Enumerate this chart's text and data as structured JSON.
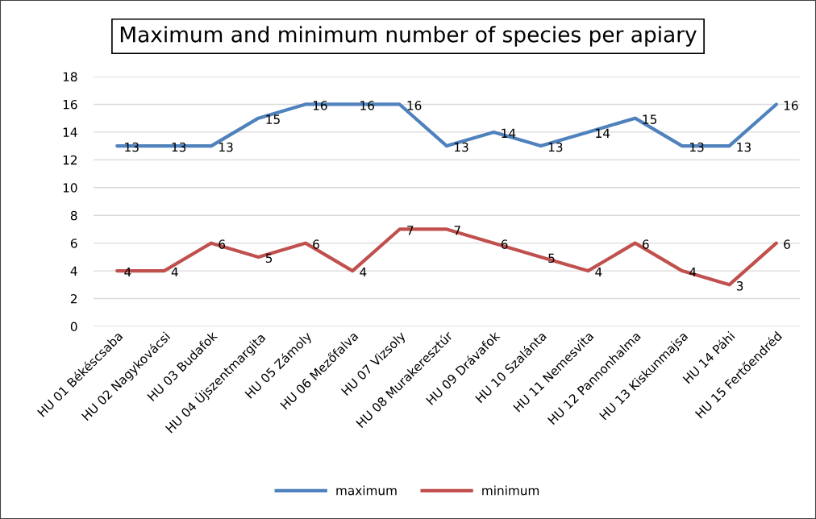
{
  "chart_data": {
    "type": "line",
    "title": "Maximum and minimum number of species per apiary",
    "categories": [
      "HU 01 Békéscsaba",
      "HU 02 Nagykovácsi",
      "HU 03 Budafok",
      "HU 04 Újszentmargita",
      "HU 05 Zámoly",
      "HU 06 Mezőfalva",
      "HU 07 Vizsoly",
      "HU 08 Murakeresztúr",
      "HU 09 Drávafok",
      "HU 10 Szalánta",
      "HU 11 Nemesvita",
      "HU 12 Pannonhalma",
      "HU 13 Kiskunmajsa",
      "HU 14 Páhi",
      "HU 15 Fertőendréd"
    ],
    "series": [
      {
        "name": "maximum",
        "color": "#4f81bd",
        "values": [
          13,
          13,
          13,
          15,
          16,
          16,
          16,
          13,
          14,
          13,
          14,
          15,
          13,
          13,
          16
        ]
      },
      {
        "name": "minimum",
        "color": "#c0504d",
        "values": [
          4,
          4,
          6,
          5,
          6,
          4,
          7,
          7,
          6,
          5,
          4,
          6,
          4,
          3,
          6
        ]
      }
    ],
    "ylim": [
      0,
      18
    ],
    "yticks": [
      0,
      2,
      4,
      6,
      8,
      10,
      12,
      14,
      16,
      18
    ],
    "grid": "y",
    "legend": "bottom",
    "data_labels": true,
    "marker": "none",
    "line_style": "solid"
  }
}
